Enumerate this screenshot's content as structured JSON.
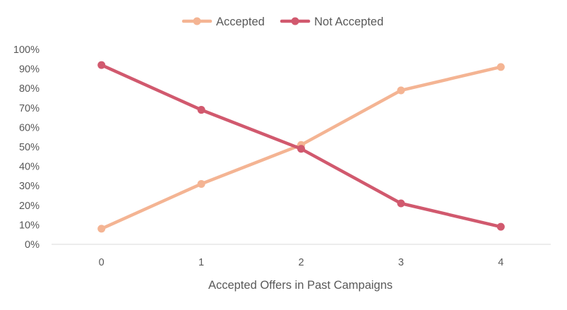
{
  "chart_data": {
    "type": "line",
    "title": "",
    "xlabel": "Accepted Offers in Past Campaigns",
    "ylabel": "",
    "categories": [
      "0",
      "1",
      "2",
      "3",
      "4"
    ],
    "yticks": [
      "0%",
      "10%",
      "20%",
      "30%",
      "40%",
      "50%",
      "60%",
      "70%",
      "80%",
      "90%",
      "100%"
    ],
    "ylim": [
      0,
      100
    ],
    "grid": false,
    "legend_position": "top",
    "series": [
      {
        "name": "Accepted",
        "color": "#F4B493",
        "values": [
          8,
          31,
          51,
          79,
          91
        ]
      },
      {
        "name": "Not Accepted",
        "color": "#D1596E",
        "values": [
          92,
          69,
          49,
          21,
          9
        ]
      }
    ]
  }
}
